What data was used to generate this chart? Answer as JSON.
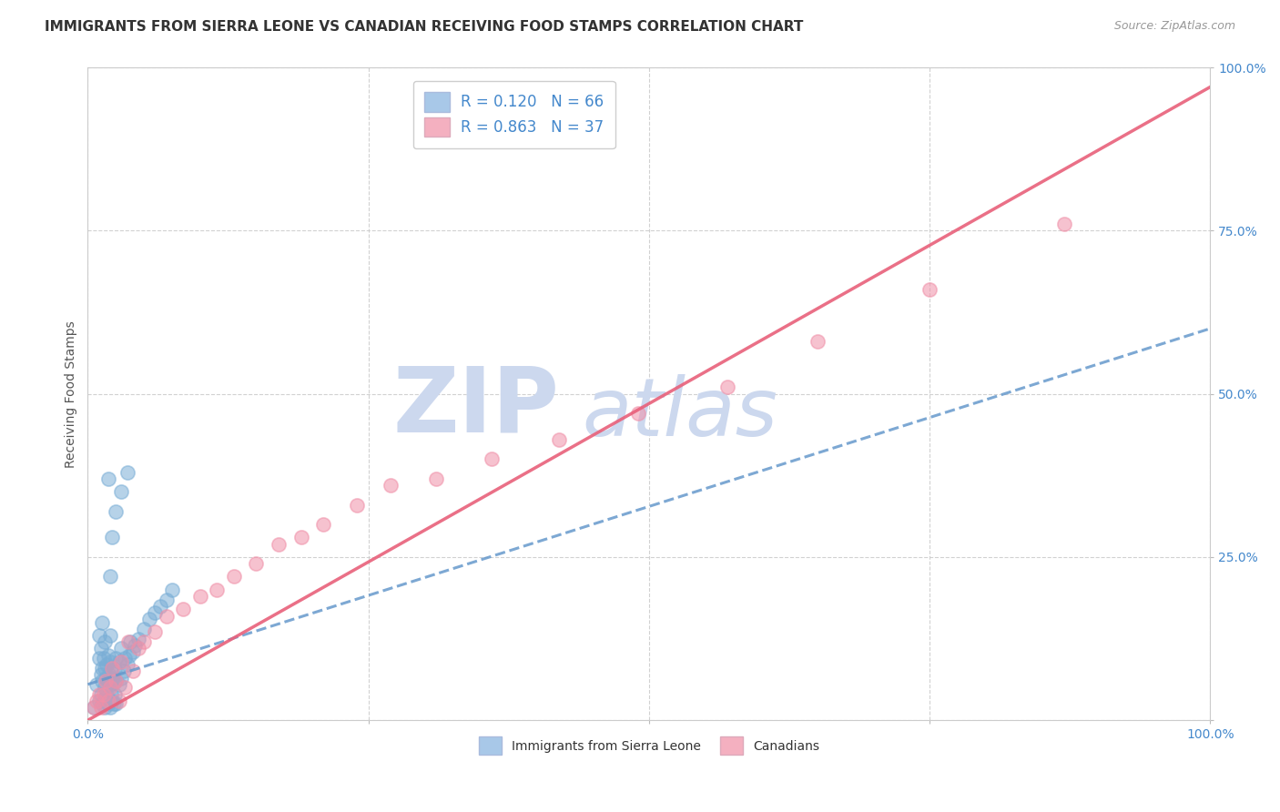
{
  "title": "IMMIGRANTS FROM SIERRA LEONE VS CANADIAN RECEIVING FOOD STAMPS CORRELATION CHART",
  "source": "Source: ZipAtlas.com",
  "ylabel": "Receiving Food Stamps",
  "xlim": [
    0.0,
    1.0
  ],
  "ylim": [
    0.0,
    1.0
  ],
  "ytick_positions": [
    0.0,
    0.25,
    0.5,
    0.75,
    1.0
  ],
  "xtick_positions": [
    0.0,
    0.25,
    0.5,
    0.75,
    1.0
  ],
  "blue_scatter_x": [
    0.005,
    0.008,
    0.01,
    0.01,
    0.01,
    0.012,
    0.012,
    0.012,
    0.013,
    0.013,
    0.013,
    0.013,
    0.014,
    0.014,
    0.015,
    0.015,
    0.015,
    0.015,
    0.016,
    0.016,
    0.017,
    0.017,
    0.018,
    0.018,
    0.018,
    0.019,
    0.019,
    0.02,
    0.02,
    0.02,
    0.02,
    0.021,
    0.021,
    0.022,
    0.022,
    0.023,
    0.023,
    0.024,
    0.024,
    0.025,
    0.025,
    0.025,
    0.028,
    0.028,
    0.03,
    0.03,
    0.032,
    0.033,
    0.035,
    0.037,
    0.038,
    0.04,
    0.042,
    0.045,
    0.05,
    0.055,
    0.06,
    0.065,
    0.07,
    0.075,
    0.018,
    0.02,
    0.022,
    0.025,
    0.03,
    0.035
  ],
  "blue_scatter_y": [
    0.02,
    0.055,
    0.03,
    0.095,
    0.13,
    0.04,
    0.07,
    0.11,
    0.025,
    0.06,
    0.08,
    0.15,
    0.03,
    0.095,
    0.02,
    0.05,
    0.08,
    0.12,
    0.035,
    0.065,
    0.04,
    0.085,
    0.025,
    0.06,
    0.1,
    0.03,
    0.07,
    0.02,
    0.055,
    0.09,
    0.13,
    0.04,
    0.075,
    0.03,
    0.065,
    0.025,
    0.058,
    0.04,
    0.078,
    0.025,
    0.06,
    0.095,
    0.055,
    0.09,
    0.065,
    0.11,
    0.075,
    0.095,
    0.085,
    0.1,
    0.12,
    0.105,
    0.115,
    0.125,
    0.14,
    0.155,
    0.165,
    0.175,
    0.185,
    0.2,
    0.37,
    0.22,
    0.28,
    0.32,
    0.35,
    0.38
  ],
  "pink_scatter_x": [
    0.005,
    0.008,
    0.01,
    0.012,
    0.014,
    0.016,
    0.018,
    0.02,
    0.022,
    0.025,
    0.028,
    0.03,
    0.033,
    0.036,
    0.04,
    0.045,
    0.05,
    0.06,
    0.07,
    0.085,
    0.1,
    0.115,
    0.13,
    0.15,
    0.17,
    0.19,
    0.21,
    0.24,
    0.27,
    0.31,
    0.36,
    0.42,
    0.49,
    0.57,
    0.65,
    0.75,
    0.87
  ],
  "pink_scatter_y": [
    0.02,
    0.03,
    0.04,
    0.02,
    0.04,
    0.06,
    0.03,
    0.05,
    0.08,
    0.06,
    0.03,
    0.09,
    0.05,
    0.12,
    0.075,
    0.11,
    0.12,
    0.135,
    0.16,
    0.17,
    0.19,
    0.2,
    0.22,
    0.24,
    0.27,
    0.28,
    0.3,
    0.33,
    0.36,
    0.37,
    0.4,
    0.43,
    0.47,
    0.51,
    0.58,
    0.66,
    0.76
  ],
  "blue_line_x0": 0.0,
  "blue_line_y0": 0.055,
  "blue_line_x1": 1.0,
  "blue_line_y1": 0.6,
  "pink_line_x0": 0.0,
  "pink_line_y0": 0.0,
  "pink_line_x1": 1.0,
  "pink_line_y1": 0.97,
  "blue_scatter_color": "#7aaed6",
  "pink_scatter_color": "#f090a8",
  "blue_line_color": "#6699cc",
  "pink_line_color": "#e8607a",
  "blue_legend_color": "#a8c8e8",
  "pink_legend_color": "#f4b0c0",
  "background_color": "#ffffff",
  "grid_color": "#cccccc",
  "watermark_zip": "ZIP",
  "watermark_atlas": "atlas",
  "watermark_color": "#ccd8ee",
  "title_fontsize": 11,
  "axis_label_fontsize": 10,
  "tick_fontsize": 10,
  "scatter_alpha": 0.55,
  "scatter_size": 120
}
